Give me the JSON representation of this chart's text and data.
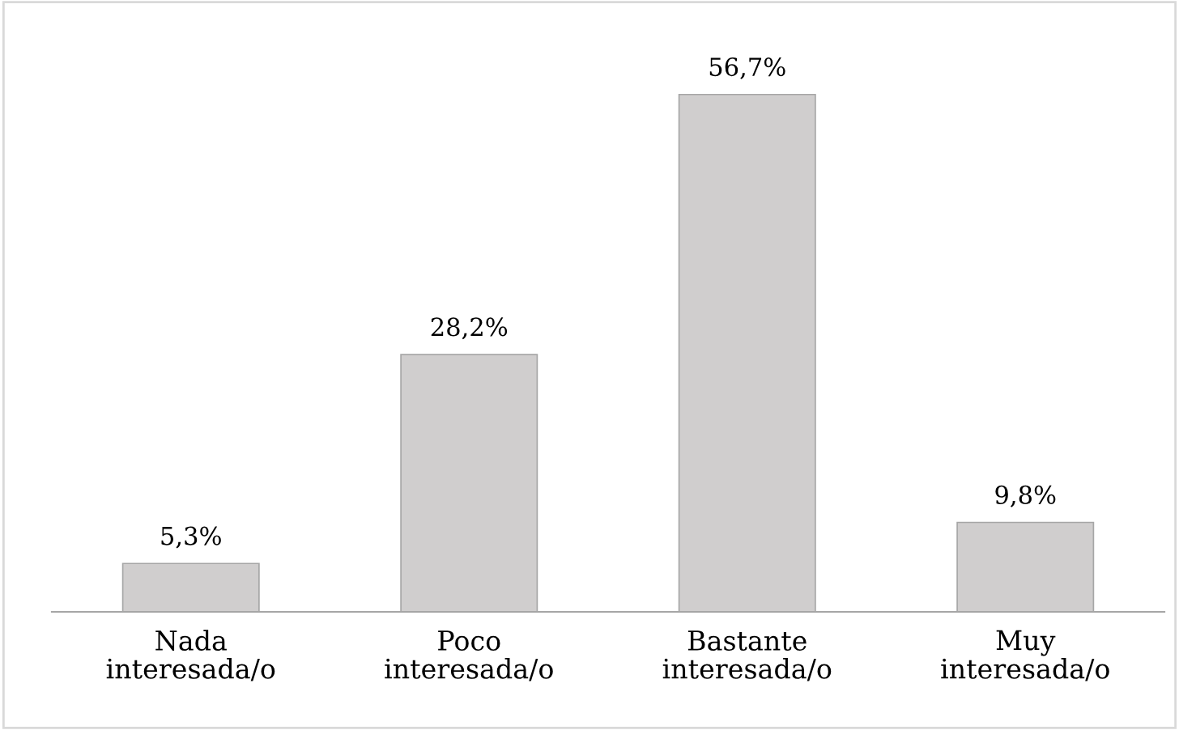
{
  "chart_data": {
    "type": "bar",
    "categories": [
      "Nada\ninteresada/o",
      "Poco\ninteresada/o",
      "Bastante\ninteresada/o",
      "Muy\ninteresada/o"
    ],
    "values": [
      5.3,
      28.2,
      56.7,
      9.8
    ],
    "value_labels": [
      "5,3%",
      "28,2%",
      "56,7%",
      "9,8%"
    ],
    "color": "#d0cece",
    "grid": false,
    "legend": false
  }
}
